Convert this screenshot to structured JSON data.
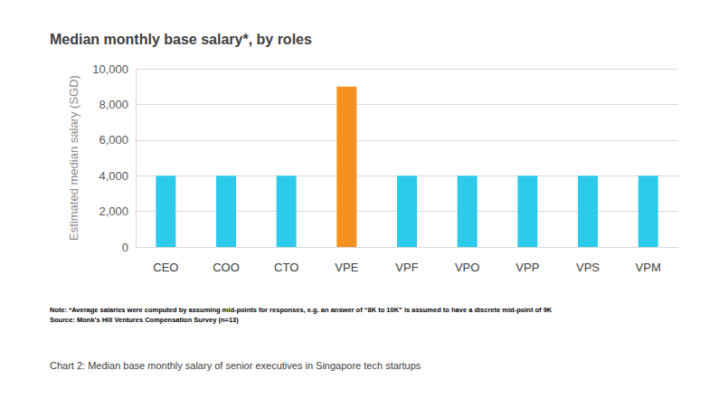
{
  "chart_data": {
    "type": "bar",
    "title": "Median monthly base salary*, by roles",
    "ylabel": "Estimated median salary (SGD)",
    "categories": [
      "CEO",
      "COO",
      "CTO",
      "VPE",
      "VPF",
      "VPO",
      "VPP",
      "VPS",
      "VPM"
    ],
    "values": [
      4000,
      4000,
      4000,
      9000,
      4000,
      4000,
      4000,
      4000,
      4000
    ],
    "colors": [
      "#2dcbeb",
      "#2dcbeb",
      "#2dcbeb",
      "#f7901e",
      "#2dcbeb",
      "#2dcbeb",
      "#2dcbeb",
      "#2dcbeb",
      "#2dcbeb"
    ],
    "ylim": [
      0,
      10000
    ],
    "yticks": [
      0,
      {
        "value": 2000,
        "label": "2,000"
      },
      {
        "value": 4000,
        "label": "4,000"
      },
      {
        "value": 6000,
        "label": "6,000"
      },
      {
        "value": 8000,
        "label": "8,000"
      },
      {
        "value": 10000,
        "label": "10,000"
      }
    ],
    "grid": true,
    "annotations": [
      "Note: *Average salaries were computed by assuming mid-points for responses, e.g. an answer of “8K to 10K” is assumed to have a discrete mid-point of 9K",
      "Source: Monk’s Hill Ventures Compensation Survey (n=13)"
    ],
    "caption": "Chart 2: Median base monthly salary of senior executives in Singapore tech startups"
  }
}
